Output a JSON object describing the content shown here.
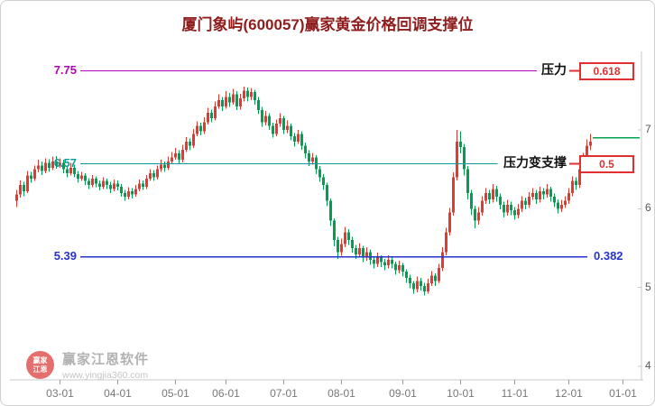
{
  "title": "厦门象屿(600057)赢家黄金价格回调支撑位",
  "watermark": {
    "brand": "赢家江恩软件",
    "url": "www.yingjia360.com",
    "logo_line1": "赢家",
    "logo_line2": "江恩"
  },
  "colors": {
    "title": "#8f1d1d",
    "up": "#e23a2e",
    "down": "#00a050",
    "axis": "#c9c9c9",
    "tick_text": "#777777",
    "badge": "#e03030"
  },
  "chart_data": {
    "type": "candlestick",
    "title": "厦门象屿(600057)赢家黄金价格回调支撑位",
    "stock_name": "厦门象屿",
    "stock_code": "600057",
    "ylim": [
      3.8,
      8.1
    ],
    "y_ticks": [
      7,
      6,
      5,
      4
    ],
    "x_tick_labels": [
      "03-01",
      "04-01",
      "05-01",
      "06-01",
      "07-01",
      "08-01",
      "09-01",
      "10-01",
      "11-01",
      "12-01",
      "01-01"
    ],
    "x_tick_positions": [
      12,
      28,
      44,
      58,
      74,
      90,
      107,
      123,
      138,
      153,
      168
    ],
    "grid": "off",
    "levels": [
      {
        "price": 7.75,
        "label": "7.75",
        "color": "#b400b4",
        "annotation": "压力",
        "badge": "0.618",
        "boxed": true
      },
      {
        "price": 6.57,
        "label": "6.57",
        "color": "#0f9b9b",
        "annotation": "压力变支撑",
        "badge": "0.5",
        "boxed": true
      },
      {
        "price": 5.39,
        "label": "5.39",
        "color": "#2633cc",
        "annotation": "",
        "badge": "0.382",
        "boxed": false
      }
    ],
    "last_price": {
      "value": 6.9,
      "color": "#00a050"
    },
    "ohlc": [
      [
        6.1,
        6.24,
        6.02,
        6.18
      ],
      [
        6.18,
        6.36,
        6.14,
        6.3
      ],
      [
        6.3,
        6.34,
        6.16,
        6.22
      ],
      [
        6.22,
        6.48,
        6.2,
        6.42
      ],
      [
        6.42,
        6.47,
        6.33,
        6.38
      ],
      [
        6.38,
        6.55,
        6.35,
        6.5
      ],
      [
        6.5,
        6.62,
        6.46,
        6.55
      ],
      [
        6.55,
        6.6,
        6.43,
        6.48
      ],
      [
        6.48,
        6.64,
        6.45,
        6.58
      ],
      [
        6.58,
        6.63,
        6.47,
        6.52
      ],
      [
        6.52,
        6.66,
        6.49,
        6.6
      ],
      [
        6.6,
        6.67,
        6.51,
        6.55
      ],
      [
        6.55,
        6.64,
        6.52,
        6.58
      ],
      [
        6.58,
        6.62,
        6.45,
        6.5
      ],
      [
        6.5,
        6.54,
        6.4,
        6.45
      ],
      [
        6.45,
        6.58,
        6.42,
        6.52
      ],
      [
        6.52,
        6.56,
        6.4,
        6.44
      ],
      [
        6.44,
        6.48,
        6.33,
        6.38
      ],
      [
        6.38,
        6.47,
        6.35,
        6.42
      ],
      [
        6.42,
        6.45,
        6.3,
        6.35
      ],
      [
        6.35,
        6.39,
        6.25,
        6.3
      ],
      [
        6.3,
        6.43,
        6.27,
        6.38
      ],
      [
        6.38,
        6.41,
        6.27,
        6.32
      ],
      [
        6.32,
        6.36,
        6.23,
        6.28
      ],
      [
        6.28,
        6.4,
        6.25,
        6.35
      ],
      [
        6.35,
        6.38,
        6.25,
        6.3
      ],
      [
        6.3,
        6.34,
        6.2,
        6.25
      ],
      [
        6.25,
        6.37,
        6.22,
        6.32
      ],
      [
        6.32,
        6.36,
        6.23,
        6.28
      ],
      [
        6.28,
        6.31,
        6.15,
        6.2
      ],
      [
        6.2,
        6.24,
        6.1,
        6.15
      ],
      [
        6.15,
        6.27,
        6.12,
        6.22
      ],
      [
        6.22,
        6.26,
        6.13,
        6.18
      ],
      [
        6.18,
        6.3,
        6.15,
        6.25
      ],
      [
        6.25,
        6.37,
        6.22,
        6.32
      ],
      [
        6.32,
        6.36,
        6.24,
        6.28
      ],
      [
        6.28,
        6.43,
        6.25,
        6.38
      ],
      [
        6.38,
        6.5,
        6.35,
        6.45
      ],
      [
        6.45,
        6.49,
        6.35,
        6.4
      ],
      [
        6.4,
        6.55,
        6.37,
        6.5
      ],
      [
        6.5,
        6.62,
        6.47,
        6.56
      ],
      [
        6.56,
        6.6,
        6.47,
        6.52
      ],
      [
        6.52,
        6.66,
        6.49,
        6.6
      ],
      [
        6.6,
        6.72,
        6.57,
        6.65
      ],
      [
        6.65,
        6.77,
        6.62,
        6.7
      ],
      [
        6.7,
        6.74,
        6.57,
        6.62
      ],
      [
        6.62,
        6.81,
        6.59,
        6.75
      ],
      [
        6.75,
        6.91,
        6.72,
        6.85
      ],
      [
        6.85,
        6.89,
        6.74,
        6.8
      ],
      [
        6.8,
        7.01,
        6.77,
        6.95
      ],
      [
        6.95,
        7.11,
        6.92,
        7.05
      ],
      [
        7.05,
        7.09,
        6.93,
        6.98
      ],
      [
        6.98,
        7.16,
        6.95,
        7.1
      ],
      [
        7.1,
        7.28,
        7.07,
        7.22
      ],
      [
        7.22,
        7.26,
        7.1,
        7.15
      ],
      [
        7.15,
        7.36,
        7.12,
        7.3
      ],
      [
        7.3,
        7.45,
        7.27,
        7.38
      ],
      [
        7.38,
        7.42,
        7.24,
        7.3
      ],
      [
        7.3,
        7.49,
        7.27,
        7.42
      ],
      [
        7.42,
        7.47,
        7.29,
        7.35
      ],
      [
        7.35,
        7.52,
        7.32,
        7.45
      ],
      [
        7.45,
        7.49,
        7.25,
        7.3
      ],
      [
        7.3,
        7.46,
        7.26,
        7.4
      ],
      [
        7.4,
        7.55,
        7.36,
        7.5
      ],
      [
        7.5,
        7.54,
        7.36,
        7.42
      ],
      [
        7.42,
        7.53,
        7.38,
        7.48
      ],
      [
        7.48,
        7.51,
        7.32,
        7.38
      ],
      [
        7.38,
        7.42,
        7.2,
        7.25
      ],
      [
        7.25,
        7.29,
        7.04,
        7.1
      ],
      [
        7.1,
        7.24,
        7.06,
        7.18
      ],
      [
        7.18,
        7.21,
        7.0,
        7.05
      ],
      [
        7.05,
        7.09,
        6.9,
        6.95
      ],
      [
        6.95,
        7.13,
        6.92,
        7.08
      ],
      [
        7.08,
        7.21,
        7.04,
        7.15
      ],
      [
        7.15,
        7.18,
        6.95,
        7.0
      ],
      [
        7.0,
        7.12,
        6.96,
        7.05
      ],
      [
        7.05,
        7.08,
        6.87,
        6.92
      ],
      [
        6.92,
        6.96,
        6.79,
        6.85
      ],
      [
        6.85,
        7.0,
        6.82,
        6.95
      ],
      [
        6.95,
        6.98,
        6.75,
        6.8
      ],
      [
        6.8,
        6.84,
        6.64,
        6.7
      ],
      [
        6.7,
        6.74,
        6.54,
        6.6
      ],
      [
        6.6,
        6.71,
        6.56,
        6.65
      ],
      [
        6.65,
        6.68,
        6.44,
        6.5
      ],
      [
        6.5,
        6.54,
        6.34,
        6.4
      ],
      [
        6.4,
        6.44,
        6.24,
        6.3
      ],
      [
        6.3,
        6.33,
        6.03,
        6.1
      ],
      [
        6.1,
        6.13,
        5.78,
        5.85
      ],
      [
        5.85,
        5.88,
        5.52,
        5.6
      ],
      [
        5.6,
        5.64,
        5.36,
        5.45
      ],
      [
        5.45,
        5.62,
        5.4,
        5.55
      ],
      [
        5.55,
        5.77,
        5.51,
        5.7
      ],
      [
        5.7,
        5.74,
        5.54,
        5.6
      ],
      [
        5.6,
        5.64,
        5.44,
        5.5
      ],
      [
        5.5,
        5.54,
        5.36,
        5.42
      ],
      [
        5.42,
        5.56,
        5.38,
        5.5
      ],
      [
        5.5,
        5.53,
        5.32,
        5.38
      ],
      [
        5.38,
        5.51,
        5.34,
        5.45
      ],
      [
        5.45,
        5.48,
        5.29,
        5.35
      ],
      [
        5.35,
        5.39,
        5.24,
        5.3
      ],
      [
        5.3,
        5.44,
        5.26,
        5.38
      ],
      [
        5.38,
        5.41,
        5.26,
        5.32
      ],
      [
        5.32,
        5.36,
        5.22,
        5.28
      ],
      [
        5.28,
        5.41,
        5.24,
        5.35
      ],
      [
        5.35,
        5.38,
        5.24,
        5.3
      ],
      [
        5.3,
        5.33,
        5.16,
        5.22
      ],
      [
        5.22,
        5.34,
        5.18,
        5.28
      ],
      [
        5.28,
        5.31,
        5.14,
        5.2
      ],
      [
        5.2,
        5.23,
        5.06,
        5.12
      ],
      [
        5.12,
        5.16,
        4.99,
        5.05
      ],
      [
        5.05,
        5.08,
        4.92,
        4.98
      ],
      [
        4.98,
        5.14,
        4.94,
        5.08
      ],
      [
        5.08,
        5.12,
        4.96,
        5.02
      ],
      [
        5.02,
        5.06,
        4.9,
        4.95
      ],
      [
        4.95,
        5.11,
        4.92,
        5.05
      ],
      [
        5.05,
        5.21,
        5.02,
        5.15
      ],
      [
        5.15,
        5.18,
        5.02,
        5.08
      ],
      [
        5.08,
        5.3,
        5.05,
        5.25
      ],
      [
        5.25,
        5.51,
        5.21,
        5.45
      ],
      [
        5.45,
        5.76,
        5.41,
        5.7
      ],
      [
        5.7,
        6.01,
        5.66,
        5.95
      ],
      [
        5.95,
        6.46,
        5.91,
        6.4
      ],
      [
        6.4,
        7.0,
        6.36,
        6.85
      ],
      [
        6.85,
        6.98,
        6.7,
        6.78
      ],
      [
        6.78,
        6.82,
        6.42,
        6.5
      ],
      [
        6.5,
        6.54,
        6.12,
        6.2
      ],
      [
        6.2,
        6.24,
        5.92,
        6.0
      ],
      [
        6.0,
        6.04,
        5.75,
        5.85
      ],
      [
        5.85,
        6.02,
        5.8,
        5.95
      ],
      [
        5.95,
        6.16,
        5.91,
        6.1
      ],
      [
        6.1,
        6.26,
        6.06,
        6.2
      ],
      [
        6.2,
        6.24,
        6.06,
        6.12
      ],
      [
        6.12,
        6.31,
        6.08,
        6.25
      ],
      [
        6.25,
        6.29,
        6.09,
        6.15
      ],
      [
        6.15,
        6.19,
        5.99,
        6.05
      ],
      [
        6.05,
        6.09,
        5.89,
        5.95
      ],
      [
        5.95,
        6.11,
        5.91,
        6.05
      ],
      [
        6.05,
        6.09,
        5.92,
        5.98
      ],
      [
        5.98,
        6.02,
        5.86,
        5.92
      ],
      [
        5.92,
        6.06,
        5.88,
        6.0
      ],
      [
        6.0,
        6.16,
        5.96,
        6.1
      ],
      [
        6.1,
        6.14,
        5.99,
        6.05
      ],
      [
        6.05,
        6.21,
        6.01,
        6.15
      ],
      [
        6.15,
        6.26,
        6.11,
        6.2
      ],
      [
        6.2,
        6.24,
        6.06,
        6.12
      ],
      [
        6.12,
        6.28,
        6.08,
        6.22
      ],
      [
        6.22,
        6.26,
        6.12,
        6.18
      ],
      [
        6.18,
        6.31,
        6.14,
        6.25
      ],
      [
        6.25,
        6.28,
        6.09,
        6.15
      ],
      [
        6.15,
        6.19,
        6.02,
        6.08
      ],
      [
        6.08,
        6.12,
        5.94,
        6.0
      ],
      [
        6.0,
        6.11,
        5.96,
        6.05
      ],
      [
        6.05,
        6.16,
        6.01,
        6.1
      ],
      [
        6.1,
        6.26,
        6.06,
        6.2
      ],
      [
        6.2,
        6.41,
        6.16,
        6.35
      ],
      [
        6.35,
        6.4,
        6.24,
        6.3
      ],
      [
        6.3,
        6.56,
        6.26,
        6.5
      ],
      [
        6.5,
        6.71,
        6.46,
        6.65
      ],
      [
        6.65,
        6.88,
        6.61,
        6.8
      ],
      [
        6.8,
        6.95,
        6.74,
        6.85
      ]
    ]
  }
}
